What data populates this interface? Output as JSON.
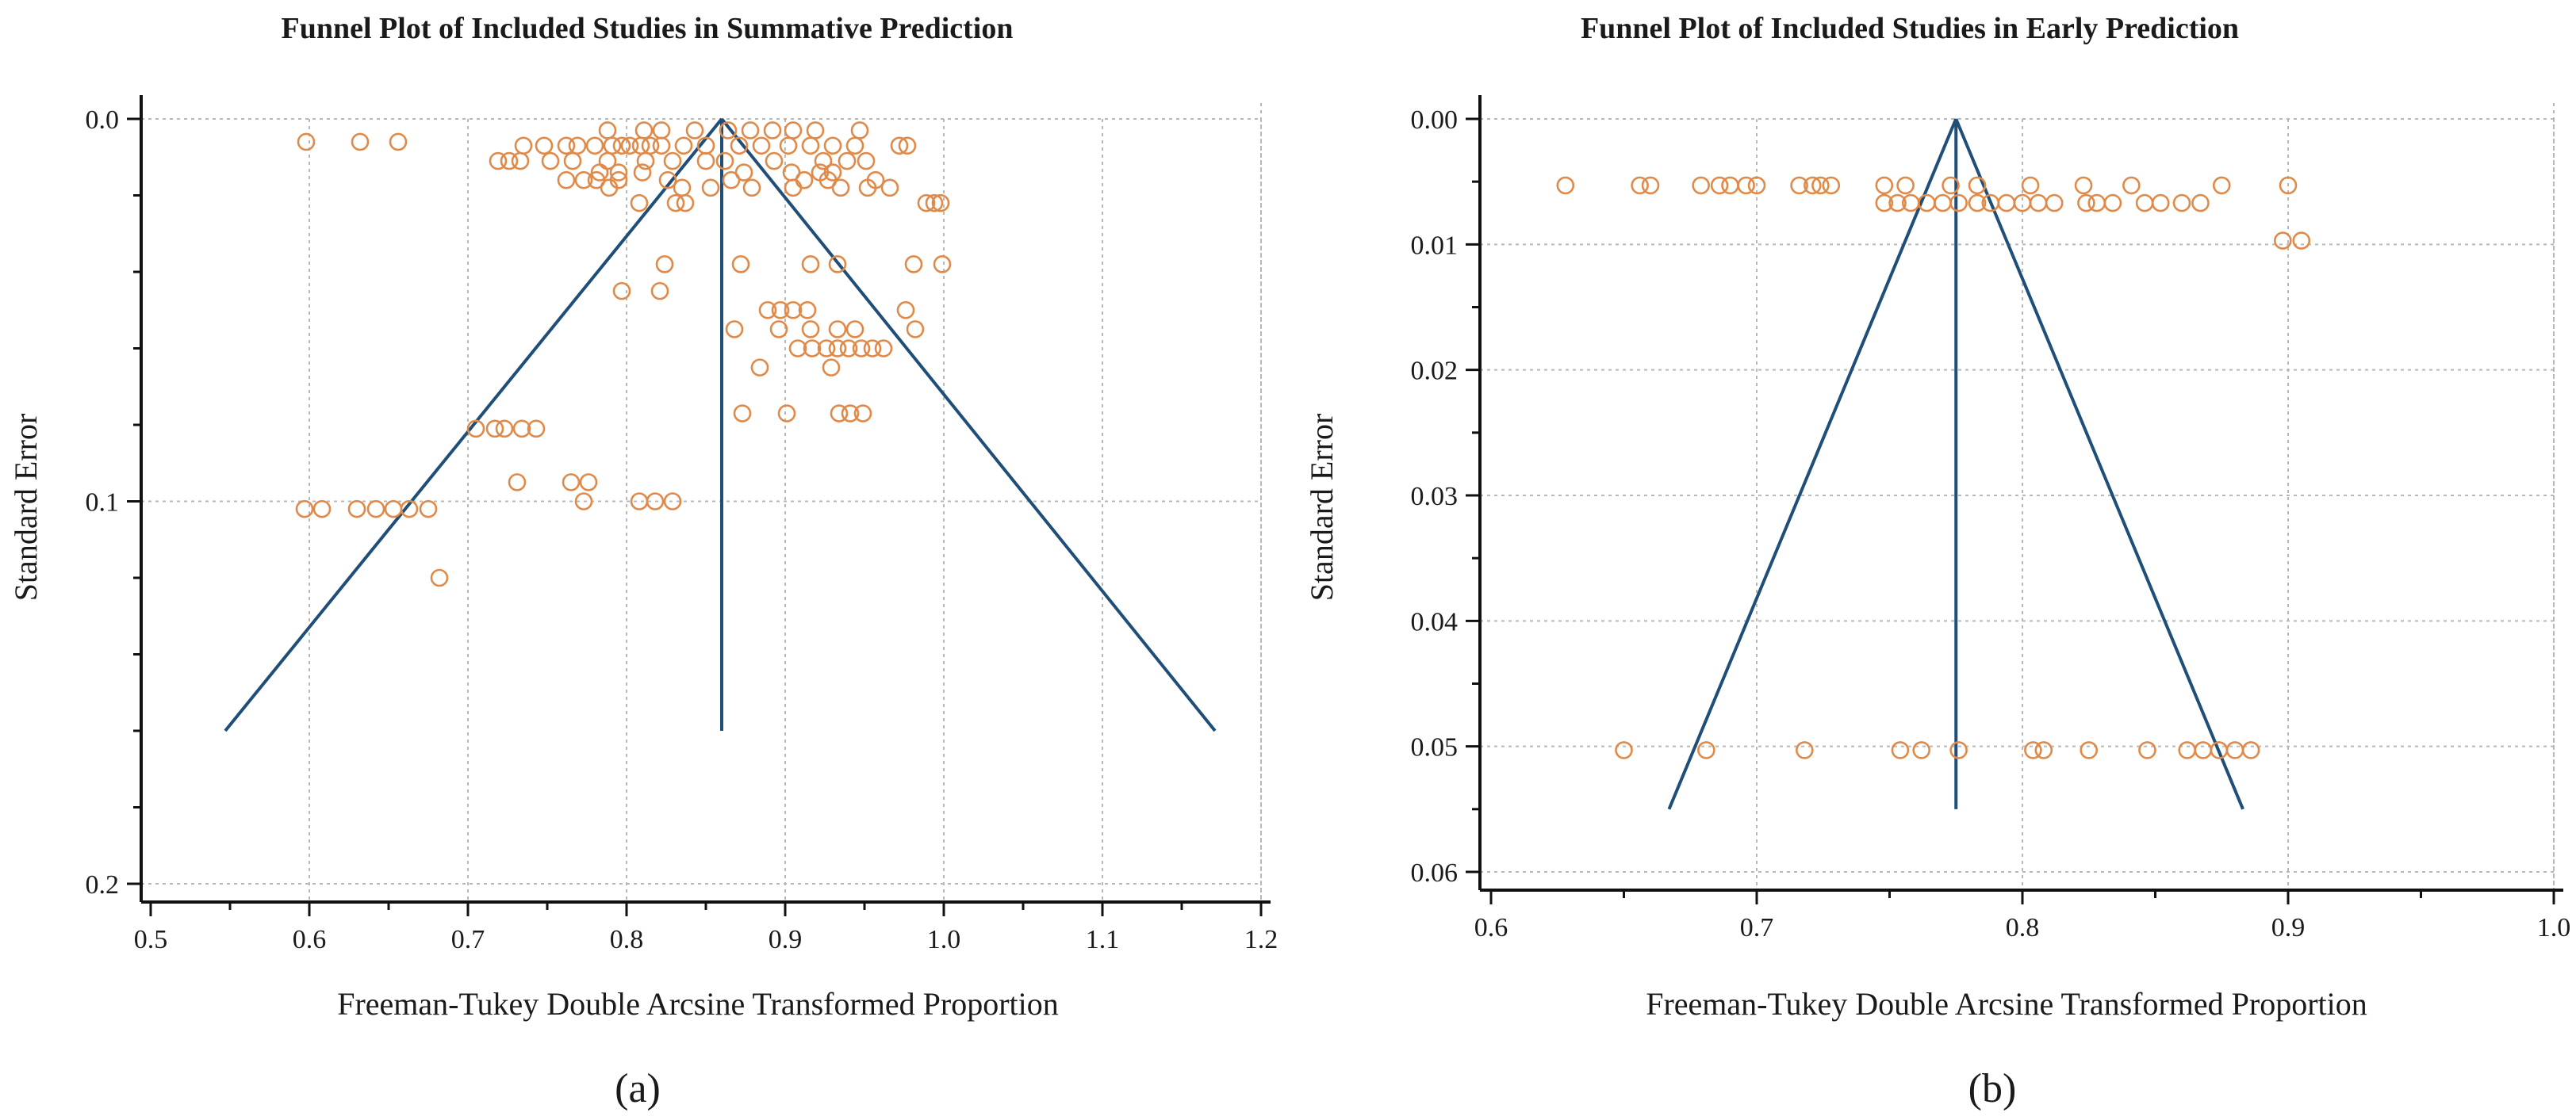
{
  "chart_data": [
    {
      "type": "scatter",
      "title": "Funnel Plot of Included Studies in Summative Prediction",
      "xlabel": "Freeman-Tukey Double Arcsine Transformed Proportion",
      "ylabel": "Standard Error",
      "panel_label": "(a)",
      "xlim": [
        0.5,
        1.2
      ],
      "ylim": [
        0.0,
        0.2
      ],
      "y_inverted": true,
      "grid": true,
      "xticks": [
        "0.5",
        "0.6",
        "0.7",
        "0.8",
        "0.9",
        "1.0",
        "1.1",
        "1.2"
      ],
      "yticks": [
        "0.0",
        "0.1",
        "0.2"
      ],
      "funnel": {
        "center": 0.86,
        "se_max": 0.16,
        "left": 0.547,
        "right": 1.171
      },
      "points": [
        [
          0.598,
          0.006
        ],
        [
          0.632,
          0.006
        ],
        [
          0.656,
          0.006
        ],
        [
          0.735,
          0.007
        ],
        [
          0.748,
          0.007
        ],
        [
          0.762,
          0.007
        ],
        [
          0.769,
          0.007
        ],
        [
          0.78,
          0.007
        ],
        [
          0.791,
          0.007
        ],
        [
          0.797,
          0.007
        ],
        [
          0.802,
          0.007
        ],
        [
          0.809,
          0.007
        ],
        [
          0.815,
          0.007
        ],
        [
          0.822,
          0.007
        ],
        [
          0.836,
          0.007
        ],
        [
          0.85,
          0.007
        ],
        [
          0.871,
          0.007
        ],
        [
          0.885,
          0.007
        ],
        [
          0.902,
          0.007
        ],
        [
          0.916,
          0.007
        ],
        [
          0.93,
          0.007
        ],
        [
          0.944,
          0.007
        ],
        [
          0.972,
          0.007
        ],
        [
          0.977,
          0.007
        ],
        [
          0.788,
          0.003
        ],
        [
          0.811,
          0.003
        ],
        [
          0.822,
          0.003
        ],
        [
          0.843,
          0.003
        ],
        [
          0.864,
          0.003
        ],
        [
          0.878,
          0.003
        ],
        [
          0.892,
          0.003
        ],
        [
          0.905,
          0.003
        ],
        [
          0.919,
          0.003
        ],
        [
          0.947,
          0.003
        ],
        [
          0.719,
          0.011
        ],
        [
          0.726,
          0.011
        ],
        [
          0.733,
          0.011
        ],
        [
          0.752,
          0.011
        ],
        [
          0.766,
          0.011
        ],
        [
          0.788,
          0.011
        ],
        [
          0.812,
          0.011
        ],
        [
          0.829,
          0.011
        ],
        [
          0.85,
          0.011
        ],
        [
          0.862,
          0.011
        ],
        [
          0.893,
          0.011
        ],
        [
          0.924,
          0.011
        ],
        [
          0.939,
          0.011
        ],
        [
          0.951,
          0.011
        ],
        [
          0.783,
          0.014
        ],
        [
          0.795,
          0.014
        ],
        [
          0.81,
          0.014
        ],
        [
          0.874,
          0.014
        ],
        [
          0.904,
          0.014
        ],
        [
          0.922,
          0.014
        ],
        [
          0.93,
          0.014
        ],
        [
          0.762,
          0.016
        ],
        [
          0.773,
          0.016
        ],
        [
          0.781,
          0.016
        ],
        [
          0.795,
          0.016
        ],
        [
          0.826,
          0.016
        ],
        [
          0.866,
          0.016
        ],
        [
          0.912,
          0.016
        ],
        [
          0.927,
          0.016
        ],
        [
          0.957,
          0.016
        ],
        [
          0.789,
          0.018
        ],
        [
          0.835,
          0.018
        ],
        [
          0.853,
          0.018
        ],
        [
          0.879,
          0.018
        ],
        [
          0.905,
          0.018
        ],
        [
          0.935,
          0.018
        ],
        [
          0.952,
          0.018
        ],
        [
          0.966,
          0.018
        ],
        [
          0.808,
          0.022
        ],
        [
          0.831,
          0.022
        ],
        [
          0.837,
          0.022
        ],
        [
          0.989,
          0.022
        ],
        [
          0.994,
          0.022
        ],
        [
          0.998,
          0.022
        ],
        [
          0.824,
          0.038
        ],
        [
          0.872,
          0.038
        ],
        [
          0.916,
          0.038
        ],
        [
          0.933,
          0.038
        ],
        [
          0.981,
          0.038
        ],
        [
          0.999,
          0.038
        ],
        [
          0.797,
          0.045
        ],
        [
          0.821,
          0.045
        ],
        [
          0.889,
          0.05
        ],
        [
          0.897,
          0.05
        ],
        [
          0.905,
          0.05
        ],
        [
          0.914,
          0.05
        ],
        [
          0.976,
          0.05
        ],
        [
          0.868,
          0.055
        ],
        [
          0.896,
          0.055
        ],
        [
          0.916,
          0.055
        ],
        [
          0.933,
          0.055
        ],
        [
          0.944,
          0.055
        ],
        [
          0.982,
          0.055
        ],
        [
          0.908,
          0.06
        ],
        [
          0.917,
          0.06
        ],
        [
          0.926,
          0.06
        ],
        [
          0.933,
          0.06
        ],
        [
          0.94,
          0.06
        ],
        [
          0.948,
          0.06
        ],
        [
          0.955,
          0.06
        ],
        [
          0.962,
          0.06
        ],
        [
          0.884,
          0.065
        ],
        [
          0.929,
          0.065
        ],
        [
          0.873,
          0.077
        ],
        [
          0.901,
          0.077
        ],
        [
          0.934,
          0.077
        ],
        [
          0.941,
          0.077
        ],
        [
          0.949,
          0.077
        ],
        [
          0.705,
          0.081
        ],
        [
          0.717,
          0.081
        ],
        [
          0.723,
          0.081
        ],
        [
          0.734,
          0.081
        ],
        [
          0.743,
          0.081
        ],
        [
          0.731,
          0.095
        ],
        [
          0.765,
          0.095
        ],
        [
          0.776,
          0.095
        ],
        [
          0.773,
          0.1
        ],
        [
          0.808,
          0.1
        ],
        [
          0.818,
          0.1
        ],
        [
          0.829,
          0.1
        ],
        [
          0.597,
          0.102
        ],
        [
          0.608,
          0.102
        ],
        [
          0.63,
          0.102
        ],
        [
          0.642,
          0.102
        ],
        [
          0.653,
          0.102
        ],
        [
          0.663,
          0.102
        ],
        [
          0.675,
          0.102
        ],
        [
          0.682,
          0.12
        ]
      ]
    },
    {
      "type": "scatter",
      "title": "Funnel Plot of Included Studies in Early Prediction",
      "xlabel": "Freeman-Tukey Double Arcsine Transformed Proportion",
      "ylabel": "Standard Error",
      "panel_label": "(b)",
      "xlim": [
        0.6,
        1.0
      ],
      "ylim": [
        0.0,
        0.06
      ],
      "y_inverted": true,
      "grid": true,
      "xticks": [
        "0.6",
        "0.7",
        "0.8",
        "0.9",
        "1.0"
      ],
      "yticks": [
        "0.00",
        "0.01",
        "0.02",
        "0.03",
        "0.04",
        "0.05",
        "0.06"
      ],
      "funnel": {
        "center": 0.775,
        "se_max": 0.055,
        "left": 0.667,
        "right": 0.883
      },
      "points": [
        [
          0.628,
          0.0053
        ],
        [
          0.656,
          0.0053
        ],
        [
          0.66,
          0.0053
        ],
        [
          0.679,
          0.0053
        ],
        [
          0.686,
          0.0053
        ],
        [
          0.69,
          0.0053
        ],
        [
          0.696,
          0.0053
        ],
        [
          0.7,
          0.0053
        ],
        [
          0.716,
          0.0053
        ],
        [
          0.721,
          0.0053
        ],
        [
          0.724,
          0.0053
        ],
        [
          0.728,
          0.0053
        ],
        [
          0.748,
          0.0053
        ],
        [
          0.756,
          0.0053
        ],
        [
          0.773,
          0.0053
        ],
        [
          0.783,
          0.0053
        ],
        [
          0.803,
          0.0053
        ],
        [
          0.823,
          0.0053
        ],
        [
          0.841,
          0.0053
        ],
        [
          0.875,
          0.0053
        ],
        [
          0.9,
          0.0053
        ],
        [
          0.748,
          0.0067
        ],
        [
          0.753,
          0.0067
        ],
        [
          0.758,
          0.0067
        ],
        [
          0.764,
          0.0067
        ],
        [
          0.77,
          0.0067
        ],
        [
          0.776,
          0.0067
        ],
        [
          0.783,
          0.0067
        ],
        [
          0.788,
          0.0067
        ],
        [
          0.794,
          0.0067
        ],
        [
          0.8,
          0.0067
        ],
        [
          0.806,
          0.0067
        ],
        [
          0.812,
          0.0067
        ],
        [
          0.824,
          0.0067
        ],
        [
          0.828,
          0.0067
        ],
        [
          0.834,
          0.0067
        ],
        [
          0.846,
          0.0067
        ],
        [
          0.852,
          0.0067
        ],
        [
          0.86,
          0.0067
        ],
        [
          0.867,
          0.0067
        ],
        [
          0.898,
          0.0097
        ],
        [
          0.905,
          0.0097
        ],
        [
          0.65,
          0.0503
        ],
        [
          0.681,
          0.0503
        ],
        [
          0.718,
          0.0503
        ],
        [
          0.754,
          0.0503
        ],
        [
          0.762,
          0.0503
        ],
        [
          0.776,
          0.0503
        ],
        [
          0.804,
          0.0503
        ],
        [
          0.808,
          0.0503
        ],
        [
          0.825,
          0.0503
        ],
        [
          0.847,
          0.0503
        ],
        [
          0.862,
          0.0503
        ],
        [
          0.868,
          0.0503
        ],
        [
          0.874,
          0.0503
        ],
        [
          0.88,
          0.0503
        ],
        [
          0.886,
          0.0503
        ]
      ]
    }
  ]
}
